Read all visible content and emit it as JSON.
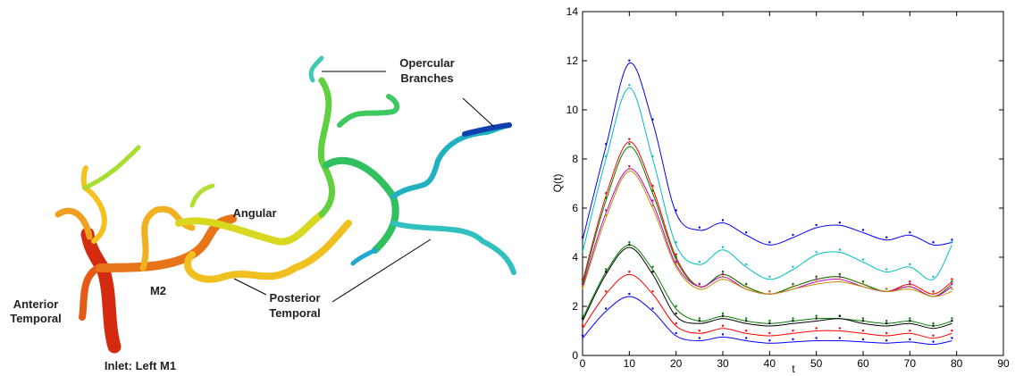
{
  "diagram": {
    "labels": [
      [
        "Opercular",
        "Branches"
      ],
      [
        "Angular"
      ],
      [
        "M2"
      ],
      [
        "Anterior",
        "Temporal"
      ],
      [
        "Posterior",
        "Temporal"
      ],
      [
        "Inlet: Left M1"
      ]
    ]
  },
  "chart_data": {
    "type": "line",
    "xlabel": "t",
    "ylabel": "Q(t)",
    "x": [
      0,
      5,
      10,
      15,
      20,
      25,
      30,
      35,
      40,
      45,
      50,
      55,
      60,
      65,
      70,
      75,
      79
    ],
    "xlim": [
      0,
      90
    ],
    "xticks": [
      0,
      10,
      20,
      30,
      40,
      50,
      60,
      70,
      80,
      90
    ],
    "ylim": [
      0,
      14
    ],
    "yticks": [
      0,
      2,
      4,
      6,
      8,
      10,
      12,
      14
    ],
    "series": [
      {
        "color": "#0000ff",
        "values": [
          4.7,
          8.5,
          11.9,
          9.5,
          5.8,
          5.1,
          5.4,
          4.9,
          4.5,
          4.8,
          5.2,
          5.3,
          5.0,
          4.7,
          4.9,
          4.5,
          4.6
        ]
      },
      {
        "color": "#00bfbf",
        "values": [
          4.2,
          8.0,
          10.9,
          8.0,
          4.5,
          3.7,
          4.3,
          3.6,
          3.1,
          3.5,
          4.1,
          4.2,
          3.8,
          3.4,
          3.6,
          3.1,
          4.5
        ]
      },
      {
        "color": "#ff0000",
        "values": [
          3.0,
          6.5,
          8.7,
          6.8,
          4.0,
          2.8,
          3.3,
          2.8,
          2.5,
          2.8,
          3.1,
          3.2,
          2.9,
          2.6,
          2.9,
          2.5,
          3.0
        ]
      },
      {
        "color": "#008000",
        "values": [
          2.9,
          6.3,
          8.5,
          6.6,
          3.9,
          2.8,
          3.3,
          2.8,
          2.5,
          2.8,
          3.1,
          3.2,
          2.9,
          2.6,
          2.8,
          2.4,
          2.9
        ]
      },
      {
        "color": "#bf00bf",
        "values": [
          2.8,
          5.8,
          7.6,
          6.2,
          3.7,
          2.8,
          3.2,
          2.7,
          2.5,
          2.7,
          3.0,
          3.1,
          2.8,
          2.6,
          2.8,
          2.4,
          2.8
        ]
      },
      {
        "color": "#bf8f00",
        "values": [
          2.7,
          5.6,
          7.5,
          6.0,
          3.6,
          2.7,
          3.1,
          2.7,
          2.5,
          2.7,
          2.9,
          3.0,
          2.8,
          2.6,
          2.7,
          2.4,
          2.6
        ]
      },
      {
        "color": "#008000",
        "values": [
          1.5,
          3.4,
          4.5,
          3.5,
          1.9,
          1.4,
          1.6,
          1.4,
          1.3,
          1.4,
          1.5,
          1.5,
          1.4,
          1.3,
          1.4,
          1.2,
          1.4
        ]
      },
      {
        "color": "#000000",
        "values": [
          1.4,
          3.3,
          4.4,
          3.3,
          1.6,
          1.3,
          1.5,
          1.3,
          1.2,
          1.3,
          1.4,
          1.5,
          1.3,
          1.2,
          1.3,
          1.1,
          1.3
        ]
      },
      {
        "color": "#ff0000",
        "values": [
          1.1,
          2.5,
          3.3,
          2.5,
          1.2,
          0.9,
          1.1,
          0.9,
          0.8,
          0.9,
          1.0,
          1.0,
          0.9,
          0.8,
          0.9,
          0.7,
          0.9
        ]
      },
      {
        "color": "#0000ff",
        "values": [
          0.7,
          1.8,
          2.4,
          1.8,
          0.8,
          0.6,
          0.75,
          0.6,
          0.5,
          0.55,
          0.6,
          0.6,
          0.55,
          0.5,
          0.55,
          0.45,
          0.6
        ]
      }
    ]
  }
}
